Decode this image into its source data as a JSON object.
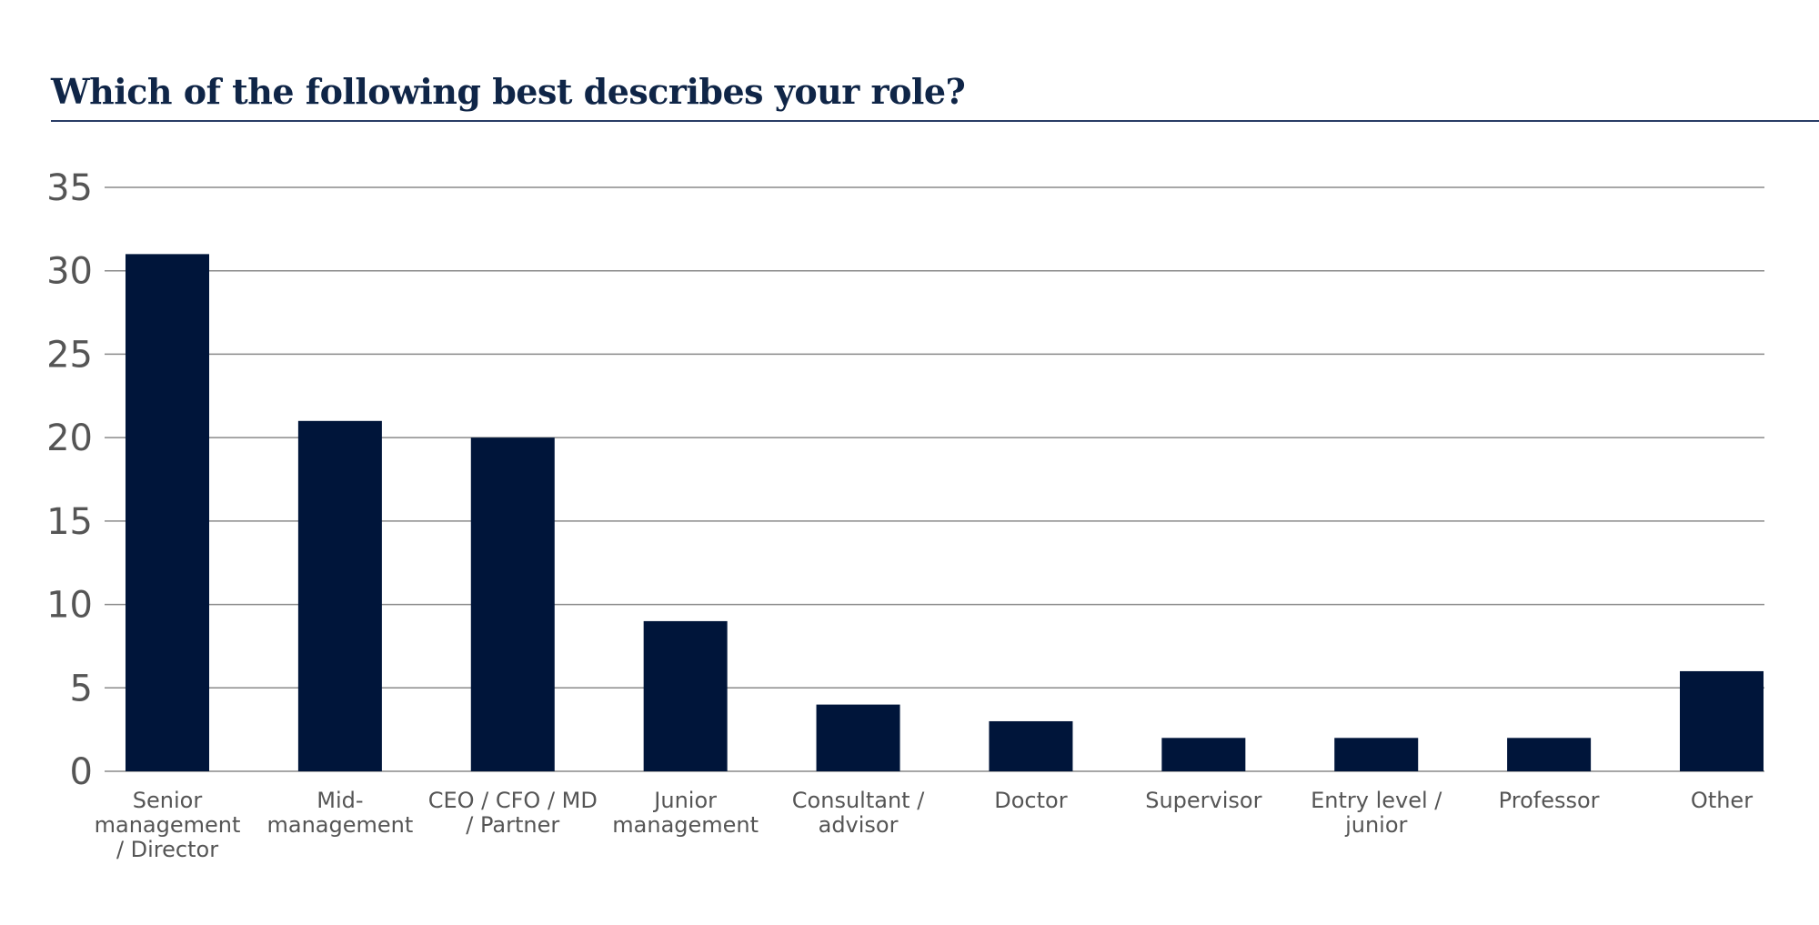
{
  "chart_data": {
    "type": "bar",
    "title": "Which of the following best describes your role?",
    "xlabel": "",
    "ylabel": "",
    "categories": [
      "Senior management / Director",
      "Mid-management",
      "CEO / CFO / MD / Partner",
      "Junior management",
      "Consultant / advisor",
      "Doctor",
      "Supervisor",
      "Entry level / junior",
      "Professor",
      "Other"
    ],
    "category_label_lines": [
      [
        "Senior",
        "management",
        "/ Director"
      ],
      [
        "Mid-",
        "management"
      ],
      [
        "CEO / CFO / MD",
        "/ Partner"
      ],
      [
        "Junior",
        "management"
      ],
      [
        "Consultant /",
        "advisor"
      ],
      [
        "Doctor"
      ],
      [
        "Supervisor"
      ],
      [
        "Entry level /",
        "junior"
      ],
      [
        "Professor"
      ],
      [
        "Other"
      ]
    ],
    "values": [
      31,
      21,
      20,
      9,
      4,
      3,
      2,
      2,
      2,
      6
    ],
    "ylim": [
      0,
      35
    ],
    "yticks": [
      0,
      5,
      10,
      15,
      20,
      25,
      30,
      35
    ],
    "grid": true,
    "legend": "none",
    "colors": {
      "bar": "#00153a",
      "grid": "#8a8a8a",
      "title": "#0f2547",
      "tick_text": "#555555"
    }
  }
}
